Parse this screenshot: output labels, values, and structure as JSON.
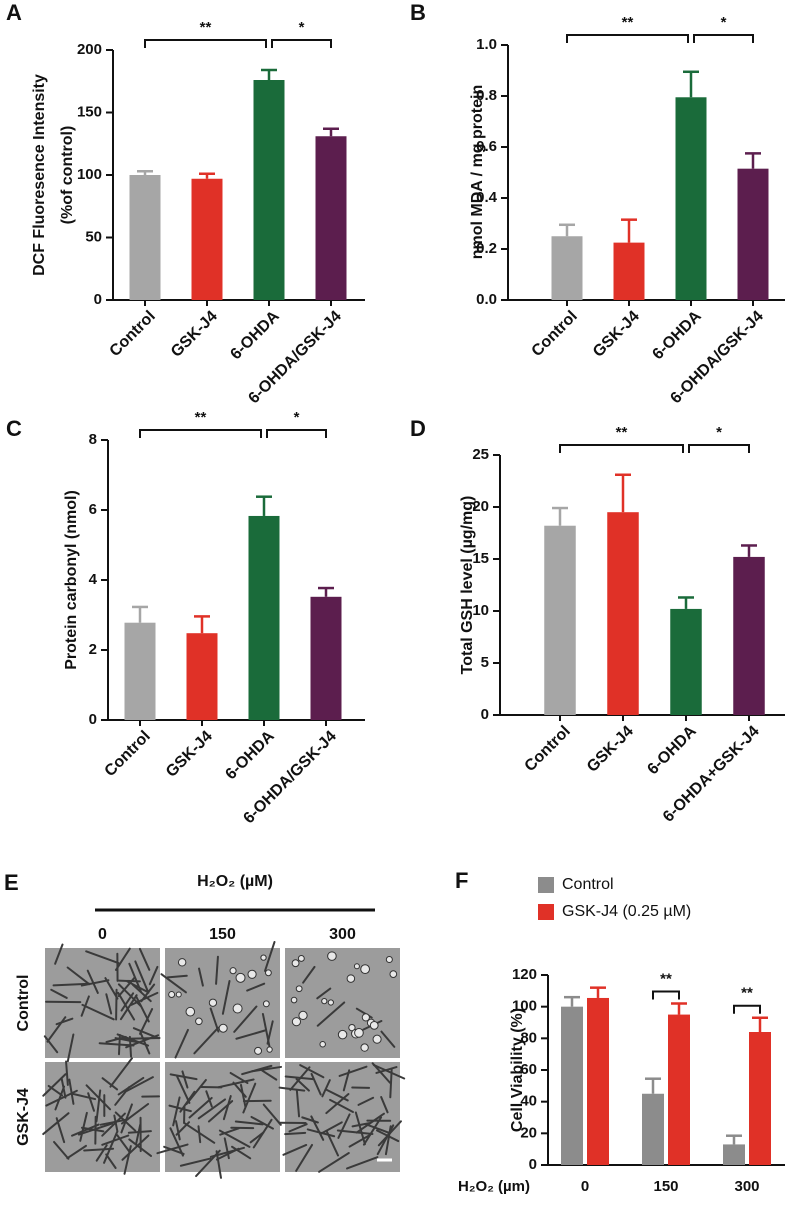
{
  "chart_data": [
    {
      "type": "bar",
      "panel": "A",
      "ylabel": [
        "DCF Fluoresence Intensity",
        "(%of control)"
      ],
      "categories": [
        "Control",
        "GSK-J4",
        "6-OHDA",
        "6-OHDA/GSK-J4"
      ],
      "values": [
        100,
        97,
        176,
        131
      ],
      "errors": [
        3,
        4,
        8,
        6
      ],
      "colors": [
        "#a6a6a6",
        "#e03127",
        "#1a6b3a",
        "#5c1e4e"
      ],
      "ylim": [
        0,
        200
      ],
      "yticks": [
        0,
        50,
        100,
        150,
        200
      ],
      "significance": [
        {
          "label": "**",
          "between": [
            "Control",
            "6-OHDA"
          ]
        },
        {
          "label": "*",
          "between": [
            "6-OHDA",
            "6-OHDA/GSK-J4"
          ]
        }
      ]
    },
    {
      "type": "bar",
      "panel": "B",
      "ylabel": [
        "nmol MDA / mg protein"
      ],
      "categories": [
        "Control",
        "GSK-J4",
        "6-OHDA",
        "6-OHDA/GSK-J4"
      ],
      "values": [
        0.25,
        0.225,
        0.795,
        0.515
      ],
      "errors": [
        0.045,
        0.09,
        0.1,
        0.06
      ],
      "colors": [
        "#a6a6a6",
        "#e03127",
        "#1a6b3a",
        "#5c1e4e"
      ],
      "ylim": [
        0,
        1
      ],
      "yticks": [
        {
          "value": 0,
          "label": "0.0"
        },
        0.2,
        0.4,
        0.6,
        0.8,
        {
          "value": 1,
          "label": "1.0"
        }
      ],
      "significance": [
        {
          "label": "**",
          "between": [
            "Control",
            "6-OHDA"
          ]
        },
        {
          "label": "*",
          "between": [
            "6-OHDA",
            "6-OHDA/GSK-J4"
          ]
        }
      ]
    },
    {
      "type": "bar",
      "panel": "C",
      "ylabel": [
        "Protein carbonyl (nmol)"
      ],
      "categories": [
        "Control",
        "GSK-J4",
        "6-OHDA",
        "6-OHDA/GSK-J4"
      ],
      "values": [
        2.78,
        2.48,
        5.83,
        3.52
      ],
      "errors": [
        0.45,
        0.48,
        0.55,
        0.25
      ],
      "colors": [
        "#a6a6a6",
        "#e03127",
        "#1a6b3a",
        "#5c1e4e"
      ],
      "ylim": [
        0,
        8
      ],
      "yticks": [
        0,
        2,
        4,
        6,
        8
      ],
      "significance": [
        {
          "label": "**",
          "between": [
            "Control",
            "6-OHDA"
          ]
        },
        {
          "label": "*",
          "between": [
            "6-OHDA",
            "6-OHDA/GSK-J4"
          ]
        }
      ]
    },
    {
      "type": "bar",
      "panel": "D",
      "ylabel": [
        "Total  GSH level (µg/mg)"
      ],
      "categories": [
        "Control",
        "GSK-J4",
        "6-OHDA",
        "6-OHDA+GSK-J4"
      ],
      "values": [
        18.2,
        19.5,
        10.2,
        15.2
      ],
      "errors": [
        1.7,
        3.6,
        1.1,
        1.1
      ],
      "colors": [
        "#a6a6a6",
        "#e03127",
        "#1a6b3a",
        "#5c1e4e"
      ],
      "ylim": [
        0,
        25
      ],
      "yticks": [
        0,
        5,
        10,
        15,
        20,
        25
      ],
      "significance": [
        {
          "label": "**",
          "between": [
            "Control",
            "6-OHDA"
          ]
        },
        {
          "label": "*",
          "between": [
            "6-OHDA",
            "6-OHDA+GSK-J4"
          ]
        }
      ]
    },
    {
      "type": "grouped-bar",
      "panel": "F",
      "ylabel": [
        "Cell Viability (%)"
      ],
      "xlabel": "H₂O₂ (µm)",
      "categories": [
        "0",
        "150",
        "300"
      ],
      "series": [
        {
          "name": "Control",
          "color": "#8c8c8c",
          "values": [
            100,
            45,
            13
          ],
          "errors": [
            6,
            9.5,
            5.5
          ]
        },
        {
          "name": "GSK-J4 (0.25 µM)",
          "color": "#e03127",
          "values": [
            105.5,
            95,
            84
          ],
          "errors": [
            6.5,
            7,
            9
          ]
        }
      ],
      "ylim": [
        0,
        120
      ],
      "yticks": [
        0,
        20,
        40,
        60,
        80,
        100,
        120
      ],
      "legend": "top",
      "significance": [
        {
          "label": "**",
          "category": "150"
        },
        {
          "label": "**",
          "category": "300"
        }
      ]
    }
  ],
  "panel_e": {
    "panel": "E",
    "title": "H₂O₂ (µM)",
    "columns": [
      "0",
      "150",
      "300"
    ],
    "rows": [
      "Control",
      "GSK-J4"
    ]
  }
}
